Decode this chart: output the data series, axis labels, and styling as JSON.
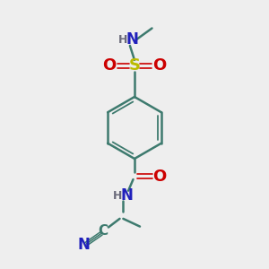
{
  "background_color": "#eeeeee",
  "atom_colors": {
    "C": "#3d7a6e",
    "N": "#2020bb",
    "O": "#cc0000",
    "S": "#bbbb00",
    "H": "#6a6a7a"
  },
  "bond_color": "#3d7a6e",
  "figsize": [
    3.0,
    3.0
  ],
  "dpi": 100
}
